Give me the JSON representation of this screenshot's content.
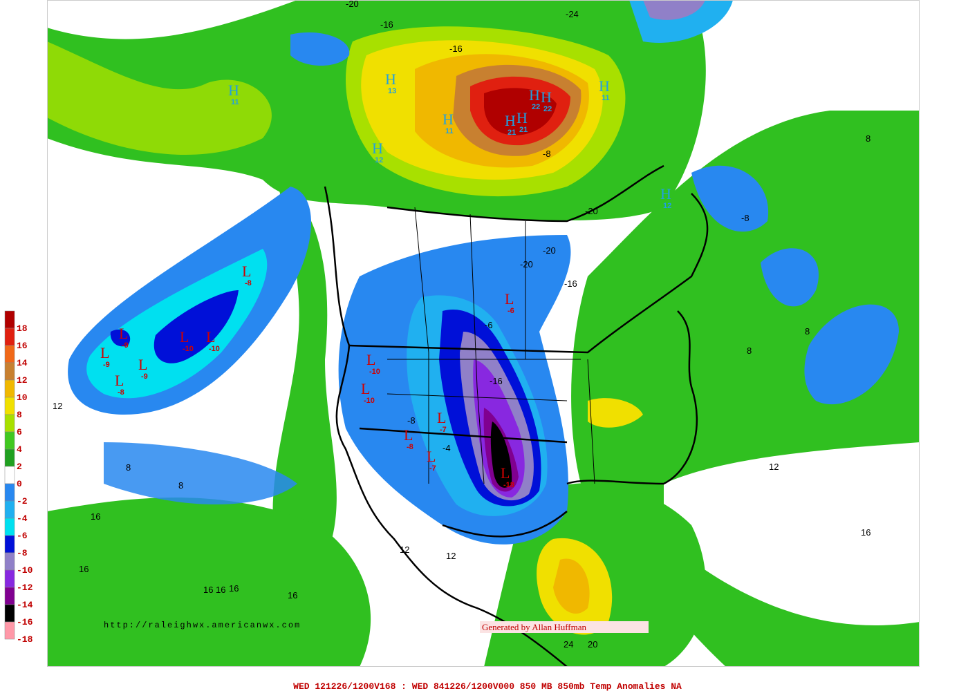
{
  "legend": [
    {
      "label": 18,
      "color": "#b00000"
    },
    {
      "label": 16,
      "color": "#e02010"
    },
    {
      "label": 14,
      "color": "#f06818"
    },
    {
      "label": 12,
      "color": "#c88030"
    },
    {
      "label": 10,
      "color": "#f0b800"
    },
    {
      "label": 8,
      "color": "#f0e000"
    },
    {
      "label": 6,
      "color": "#a8e000"
    },
    {
      "label": 4,
      "color": "#40c820"
    },
    {
      "label": 2,
      "color": "#20a020"
    },
    {
      "label": 0,
      "color": "#ffffff"
    },
    {
      "label": -2,
      "color": "#2888f0"
    },
    {
      "label": -4,
      "color": "#20b0f0"
    },
    {
      "label": -6,
      "color": "#00e0f0"
    },
    {
      "label": -8,
      "color": "#0010d8"
    },
    {
      "label": -10,
      "color": "#9080c8"
    },
    {
      "label": -12,
      "color": "#8828e0"
    },
    {
      "label": -14,
      "color": "#800090"
    },
    {
      "label": -16,
      "color": "#000000"
    },
    {
      "label": -18,
      "color": "#ff98a8"
    }
  ],
  "highs_lows": [
    {
      "letter": "H",
      "value": 22
    },
    {
      "letter": "H",
      "value": 22
    },
    {
      "letter": "H",
      "value": 21
    },
    {
      "letter": "H",
      "value": 21
    },
    {
      "letter": "H",
      "value": 13
    },
    {
      "letter": "H",
      "value": 11
    },
    {
      "letter": "H",
      "value": 12
    },
    {
      "letter": "H",
      "value": 11
    },
    {
      "letter": "H",
      "value": 11
    },
    {
      "letter": "H",
      "value": 12
    },
    {
      "letter": "L",
      "value": -8
    },
    {
      "letter": "L",
      "value": -10
    },
    {
      "letter": "L",
      "value": -10
    },
    {
      "letter": "L",
      "value": -9
    },
    {
      "letter": "L",
      "value": -9
    },
    {
      "letter": "L",
      "value": -8
    },
    {
      "letter": "L",
      "value": -9
    },
    {
      "letter": "L",
      "value": -6
    },
    {
      "letter": "L",
      "value": -18
    },
    {
      "letter": "L",
      "value": -7
    },
    {
      "letter": "L",
      "value": -7
    },
    {
      "letter": "L",
      "value": -10
    },
    {
      "letter": "L",
      "value": -8
    },
    {
      "letter": "L",
      "value": -10
    }
  ],
  "contour_labels": [
    -16,
    -16,
    -20,
    -24,
    -20,
    -20,
    -16,
    12,
    8,
    8,
    16,
    16,
    16,
    16,
    16,
    16,
    12,
    12,
    12,
    16,
    8,
    8,
    8,
    -8,
    -20,
    -8,
    24,
    20,
    -6,
    -16,
    -4,
    -8
  ],
  "credit_url": "http://raleighwx.americanwx.com",
  "credit_author": "Generated by Allan Huffman",
  "footer": "WED 121226/1200V168 : WED 841226/1200V000  850 MB 850mb Temp Anomalies NA"
}
